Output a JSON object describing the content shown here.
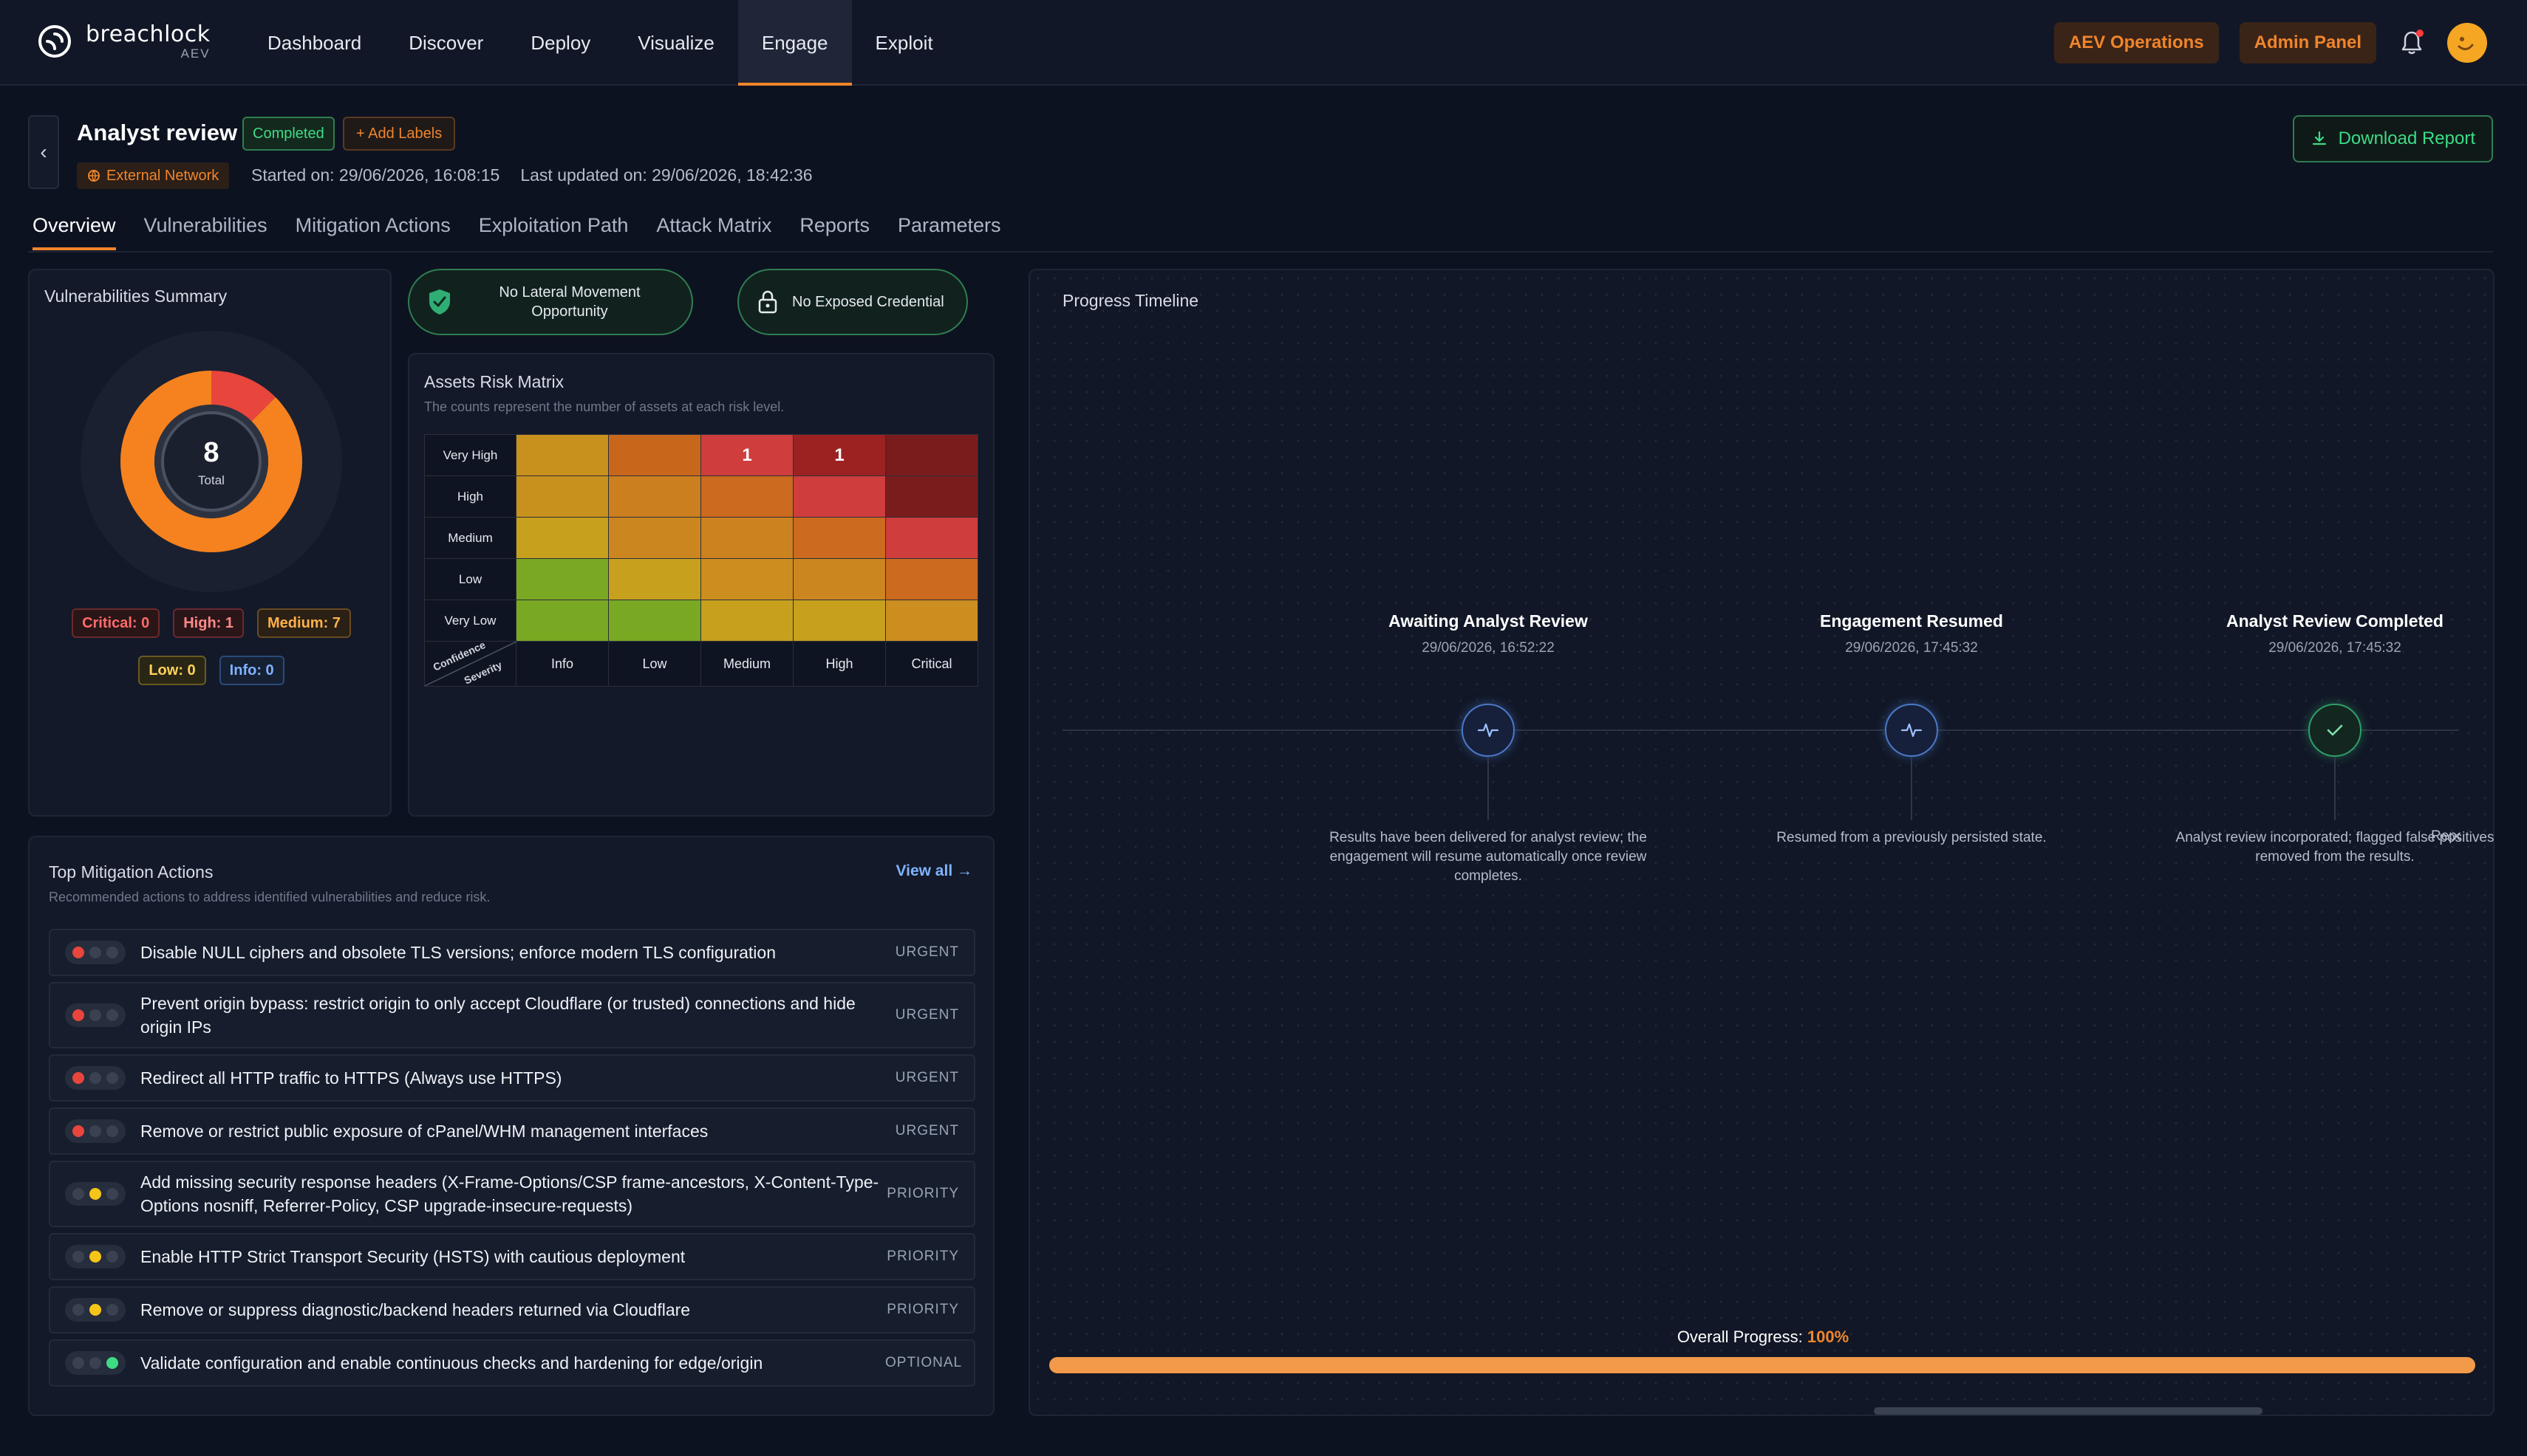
{
  "brand": {
    "name": "breachlock",
    "sub": "AEV"
  },
  "nav": {
    "items": [
      "Dashboard",
      "Discover",
      "Deploy",
      "Visualize",
      "Engage",
      "Exploit"
    ],
    "active": "Engage",
    "aev_operations": "AEV Operations",
    "admin_panel": "Admin Panel"
  },
  "header": {
    "title": "Analyst review",
    "status": "Completed",
    "add_labels": "+ Add Labels",
    "network": "External Network",
    "started": "Started on: 29/06/2026, 16:08:15",
    "updated": "Last updated on: 29/06/2026, 18:42:36",
    "download": "Download Report"
  },
  "tabs": [
    "Overview",
    "Vulnerabilities",
    "Mitigation Actions",
    "Exploitation Path",
    "Attack Matrix",
    "Reports",
    "Parameters"
  ],
  "vuln_summary": {
    "title": "Vulnerabilities Summary",
    "total": "8",
    "total_label": "Total",
    "critical": "Critical: 0",
    "high": "High: 1",
    "medium": "Medium: 7",
    "low": "Low: 0",
    "info": "Info: 0",
    "counts": {
      "critical": 0,
      "high": 1,
      "medium": 7,
      "low": 0,
      "info": 0
    },
    "colors": {
      "high": "#e8453c",
      "medium": "#f5821f",
      "track": "#1c2333"
    }
  },
  "pills": {
    "lateral": "No Lateral Movement Opportunity",
    "credential": "No Exposed Credential"
  },
  "risk_matrix": {
    "title": "Assets Risk Matrix",
    "subtitle": "The counts represent the number of assets at each risk level.",
    "rows": [
      "Very High",
      "High",
      "Medium",
      "Low",
      "Very Low"
    ],
    "cols": [
      "Info",
      "Low",
      "Medium",
      "High",
      "Critical"
    ],
    "corner_top": "Confidence",
    "corner_bottom": "Severity",
    "cells": [
      [
        {
          "c": "#c8911e",
          "v": ""
        },
        {
          "c": "#c8671c",
          "v": ""
        },
        {
          "c": "#cf3d3d",
          "v": "1"
        },
        {
          "c": "#9c2222",
          "v": "1"
        },
        {
          "c": "#7a1c1c",
          "v": ""
        }
      ],
      [
        {
          "c": "#c8911e",
          "v": ""
        },
        {
          "c": "#cc7f1f",
          "v": ""
        },
        {
          "c": "#cc6a1f",
          "v": ""
        },
        {
          "c": "#cf3d3d",
          "v": ""
        },
        {
          "c": "#7a1c1c",
          "v": ""
        }
      ],
      [
        {
          "c": "#c7a01e",
          "v": ""
        },
        {
          "c": "#cc861f",
          "v": ""
        },
        {
          "c": "#cc821f",
          "v": ""
        },
        {
          "c": "#cc6a1f",
          "v": ""
        },
        {
          "c": "#cf3d3d",
          "v": ""
        }
      ],
      [
        {
          "c": "#7aa822",
          "v": ""
        },
        {
          "c": "#c7a01e",
          "v": ""
        },
        {
          "c": "#cc8e1f",
          "v": ""
        },
        {
          "c": "#cc861f",
          "v": ""
        },
        {
          "c": "#cc6a1f",
          "v": ""
        }
      ],
      [
        {
          "c": "#79a822",
          "v": ""
        },
        {
          "c": "#79a822",
          "v": ""
        },
        {
          "c": "#c7a01e",
          "v": ""
        },
        {
          "c": "#c7a01e",
          "v": ""
        },
        {
          "c": "#cc8e1f",
          "v": ""
        }
      ]
    ]
  },
  "mitigation": {
    "title": "Top Mitigation Actions",
    "subtitle": "Recommended actions to address identified vulnerabilities and reduce risk.",
    "view_all": "View all →",
    "items": [
      {
        "text": "Disable NULL ciphers and obsolete TLS versions; enforce modern TLS configuration",
        "priority": "URGENT",
        "level": "red"
      },
      {
        "text": "Prevent origin bypass: restrict origin to only accept Cloudflare (or trusted) connections and hide origin IPs",
        "priority": "URGENT",
        "level": "red"
      },
      {
        "text": "Redirect all HTTP traffic to HTTPS (Always use HTTPS)",
        "priority": "URGENT",
        "level": "red"
      },
      {
        "text": "Remove or restrict public exposure of cPanel/WHM management interfaces",
        "priority": "URGENT",
        "level": "red"
      },
      {
        "text": "Add missing security response headers (X-Frame-Options/CSP frame-ancestors, X-Content-Type-Options nosniff, Referrer-Policy, CSP upgrade-insecure-requests)",
        "priority": "PRIORITY",
        "level": "yellow"
      },
      {
        "text": "Enable HTTP Strict Transport Security (HSTS) with cautious deployment",
        "priority": "PRIORITY",
        "level": "yellow"
      },
      {
        "text": "Remove or suppress diagnostic/backend headers returned via Cloudflare",
        "priority": "PRIORITY",
        "level": "yellow"
      },
      {
        "text": "Validate configuration and enable continuous checks and hardening for edge/origin",
        "priority": "OPTIONAL",
        "level": "green"
      }
    ]
  },
  "timeline": {
    "title": "Progress Timeline",
    "events": [
      {
        "title": "Awaiting Analyst Review",
        "date": "29/06/2026, 16:52:22",
        "desc": "Results have been delivered for analyst review; the engagement will resume automatically once review completes.",
        "icon": "activity-icon"
      },
      {
        "title": "Engagement Resumed",
        "date": "29/06/2026, 17:45:32",
        "desc": "Resumed from a previously persisted state.",
        "icon": "activity-icon"
      },
      {
        "title": "Analyst Review Completed",
        "date": "29/06/2026, 17:45:32",
        "desc": "Analyst review incorporated; flagged false positives removed from the results.",
        "icon": "check-icon"
      }
    ],
    "cut_desc": "Repo",
    "progress_label": "Overall Progress:",
    "progress_value": "100%",
    "progress": 1.0
  }
}
